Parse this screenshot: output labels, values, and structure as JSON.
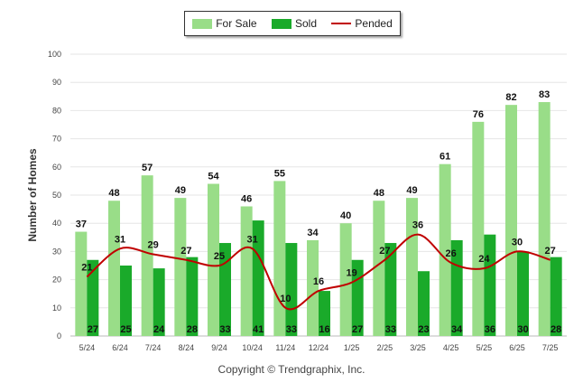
{
  "chart_data": {
    "type": "bar",
    "categories": [
      "5/24",
      "6/24",
      "7/24",
      "8/24",
      "9/24",
      "10/24",
      "11/24",
      "12/24",
      "1/25",
      "2/25",
      "3/25",
      "4/25",
      "5/25",
      "6/25",
      "7/25"
    ],
    "series": [
      {
        "name": "For Sale",
        "type": "bar",
        "color": "#99dd88",
        "values": [
          37,
          48,
          57,
          49,
          54,
          46,
          55,
          34,
          40,
          48,
          49,
          61,
          76,
          82,
          83
        ]
      },
      {
        "name": "Sold",
        "type": "bar",
        "color": "#1aaa2a",
        "values": [
          27,
          25,
          24,
          28,
          33,
          41,
          33,
          16,
          27,
          33,
          23,
          34,
          36,
          30,
          28
        ]
      },
      {
        "name": "Pended",
        "type": "line",
        "color": "#c00000",
        "values": [
          21,
          31,
          29,
          27,
          25,
          31,
          10,
          16,
          19,
          27,
          36,
          26,
          24,
          30,
          27
        ]
      }
    ],
    "ylabel": "Number of Homes",
    "ylim": [
      0,
      100
    ],
    "yticks": [
      0,
      10,
      20,
      30,
      40,
      50,
      60,
      70,
      80,
      90,
      100
    ],
    "grid": true,
    "legend": "top-center"
  },
  "footer": "Copyright © Trendgraphix, Inc."
}
